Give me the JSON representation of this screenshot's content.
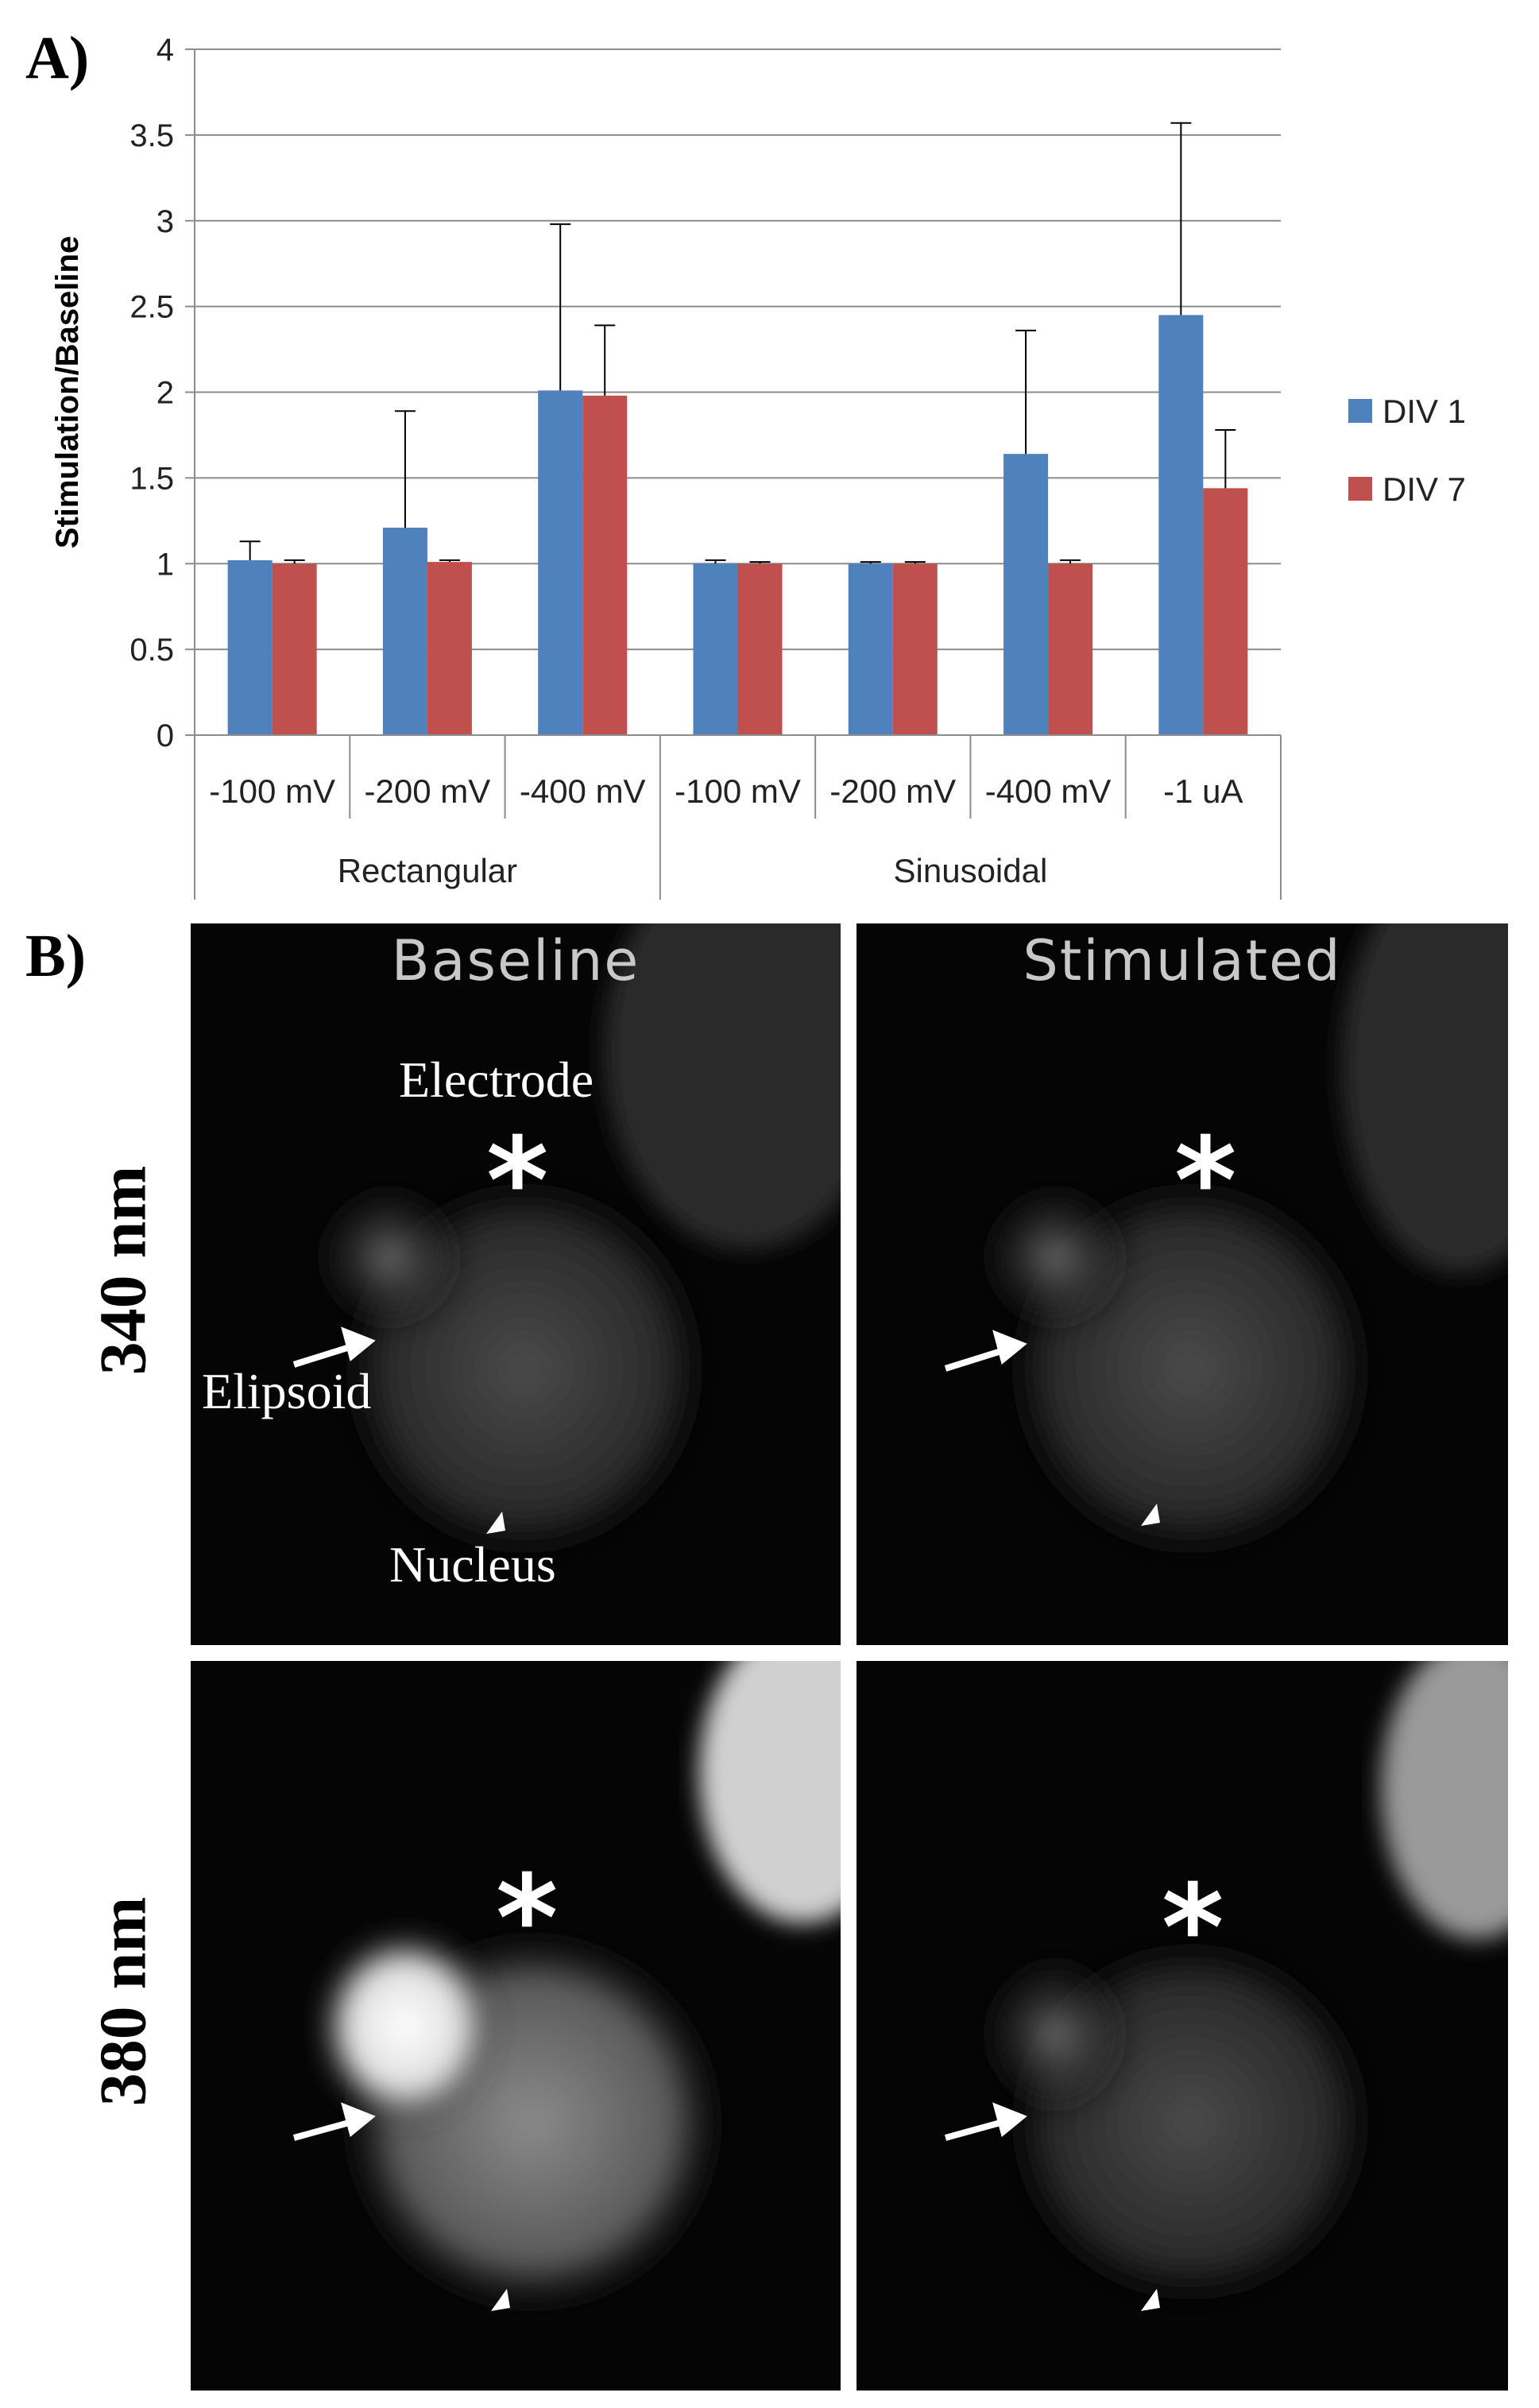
{
  "panel_a_label": "A)",
  "panel_b_label": "B)",
  "chart_data": {
    "type": "bar",
    "ylabel": "Stimulation/Baseline",
    "ylim": [
      0,
      4
    ],
    "yticks": [
      "0",
      "0.5",
      "1",
      "1.5",
      "2",
      "2.5",
      "3",
      "3.5",
      "4"
    ],
    "grid": true,
    "legend_position": "right",
    "categories": [
      "-100 mV",
      "-200 mV",
      "-400 mV",
      "-100 mV",
      "-200 mV",
      "-400 mV",
      "-1 uA"
    ],
    "groups": [
      {
        "label": "Rectangular",
        "count": 3
      },
      {
        "label": "Sinusoidal",
        "count": 4
      }
    ],
    "series": [
      {
        "name": "DIV 1",
        "color": "#4f81bd",
        "values": [
          1.02,
          1.21,
          2.01,
          1.0,
          1.0,
          1.64,
          2.45
        ],
        "errors": [
          0.11,
          0.68,
          0.97,
          0.02,
          0.01,
          0.72,
          1.12
        ]
      },
      {
        "name": "DIV 7",
        "color": "#c0504d",
        "values": [
          1.0,
          1.01,
          1.98,
          1.0,
          1.0,
          1.0,
          1.44
        ],
        "errors": [
          0.02,
          0.01,
          0.41,
          0.01,
          0.01,
          0.02,
          0.34
        ]
      }
    ]
  },
  "images": {
    "col_titles": [
      "Baseline",
      "Stimulated"
    ],
    "row_labels": [
      "340 nm",
      "380 nm"
    ],
    "annotations": {
      "electrode": "Electrode",
      "ellipsoid": "Elipsoid",
      "nucleus": "Nucleus",
      "asterisk": "*"
    }
  }
}
